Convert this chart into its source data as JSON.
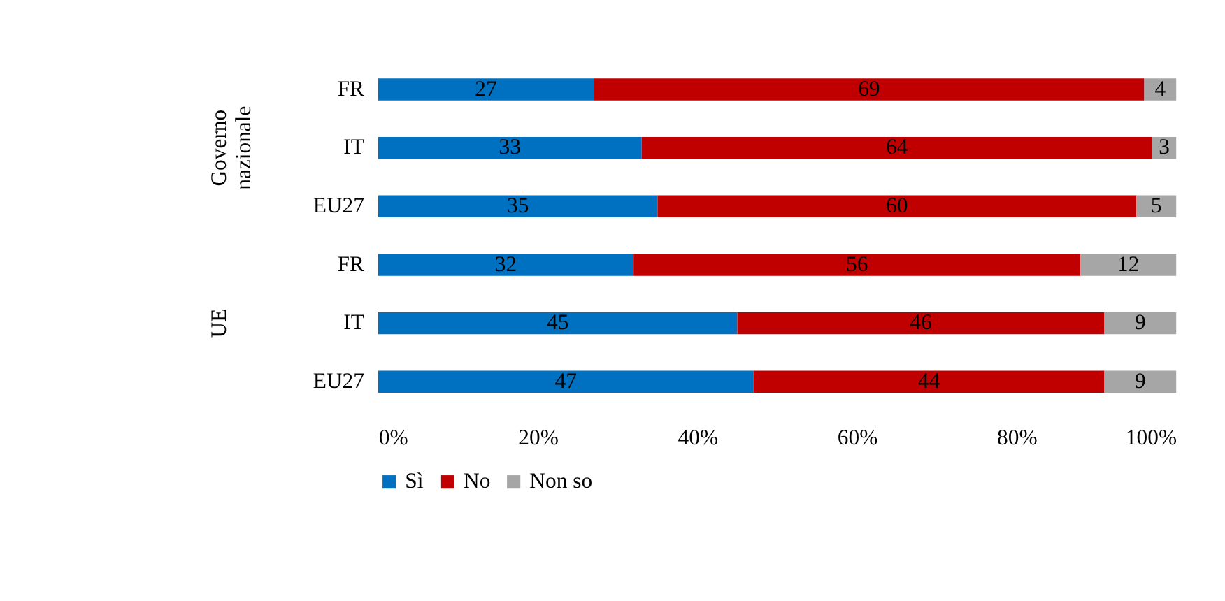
{
  "chart_data": {
    "type": "bar",
    "orientation": "horizontal",
    "stacked": true,
    "data_labels": true,
    "legend": "bottom",
    "grid": false,
    "categories": [
      "FR",
      "IT",
      "EU27",
      "FR",
      "IT",
      "EU27"
    ],
    "annotations": [
      "Governo nazionale",
      "UE"
    ],
    "series": [
      {
        "name": "Sì",
        "color": "#0070c0",
        "values": [
          27,
          33,
          35,
          32,
          45,
          47
        ]
      },
      {
        "name": "No",
        "color": "#c00000",
        "values": [
          69,
          64,
          60,
          56,
          46,
          44
        ]
      },
      {
        "name": "Non so",
        "color": "#a6a6a6",
        "values": [
          4,
          3,
          5,
          12,
          9,
          9
        ]
      }
    ],
    "xlim": [
      0,
      100
    ],
    "xticks": [
      {
        "value": 0,
        "label": "0%"
      },
      {
        "value": 20,
        "label": "20%"
      },
      {
        "value": 40,
        "label": "40%"
      },
      {
        "value": 60,
        "label": "60%"
      },
      {
        "value": 80,
        "label": "80%"
      },
      {
        "value": 100,
        "label": "100%"
      }
    ]
  }
}
